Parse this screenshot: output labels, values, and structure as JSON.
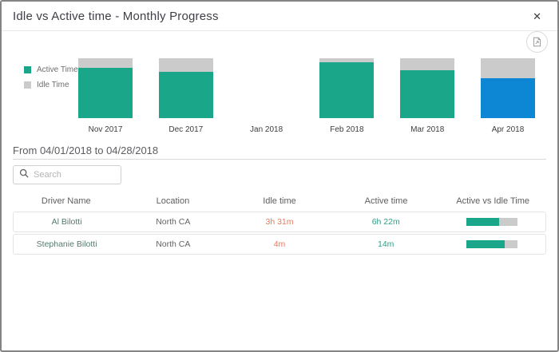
{
  "dialog": {
    "title": "Idle vs Active time - Monthly Progress",
    "close_glyph": "✕"
  },
  "chart_data": {
    "type": "bar",
    "stacked": true,
    "title": "Idle vs Active time - Monthly Progress",
    "categories": [
      "Nov 2017",
      "Dec 2017",
      "Jan 2018",
      "Feb 2018",
      "Mar 2018",
      "Apr 2018"
    ],
    "series": [
      {
        "name": "Active Time",
        "values_pct": [
          84,
          78,
          0,
          94,
          80,
          67
        ]
      },
      {
        "name": "Idle Time",
        "values_pct": [
          16,
          22,
          0,
          6,
          20,
          33
        ]
      }
    ],
    "selected_category": "Apr 2018",
    "colors": {
      "active": "#1aa689",
      "idle": "#cbcbcb",
      "selected": "#0d86d4"
    },
    "legend_position": "left",
    "axis_note": "no visible axes; all non-empty bars are full-height 100% stacked; Jan 2018 has no data"
  },
  "section": {
    "date_range": "From 04/01/2018 to 04/28/2018"
  },
  "search": {
    "placeholder": "Search",
    "value": ""
  },
  "table": {
    "columns": [
      "Driver Name",
      "Location",
      "Idle time",
      "Active time",
      "Active vs Idle Time"
    ],
    "rows": [
      {
        "driver": "Al Bilotti",
        "location": "North CA",
        "idle": "3h 31m",
        "active": "6h 22m",
        "active_pct": 64
      },
      {
        "driver": "Stephanie Bilotti",
        "location": "North CA",
        "idle": "4m",
        "active": "14m",
        "active_pct": 75
      }
    ],
    "idle_text_color": "#e8795c",
    "active_text_color": "#2fa189",
    "bar_fill_color": "#1aa689",
    "bar_track_color": "#cbcbcb"
  }
}
